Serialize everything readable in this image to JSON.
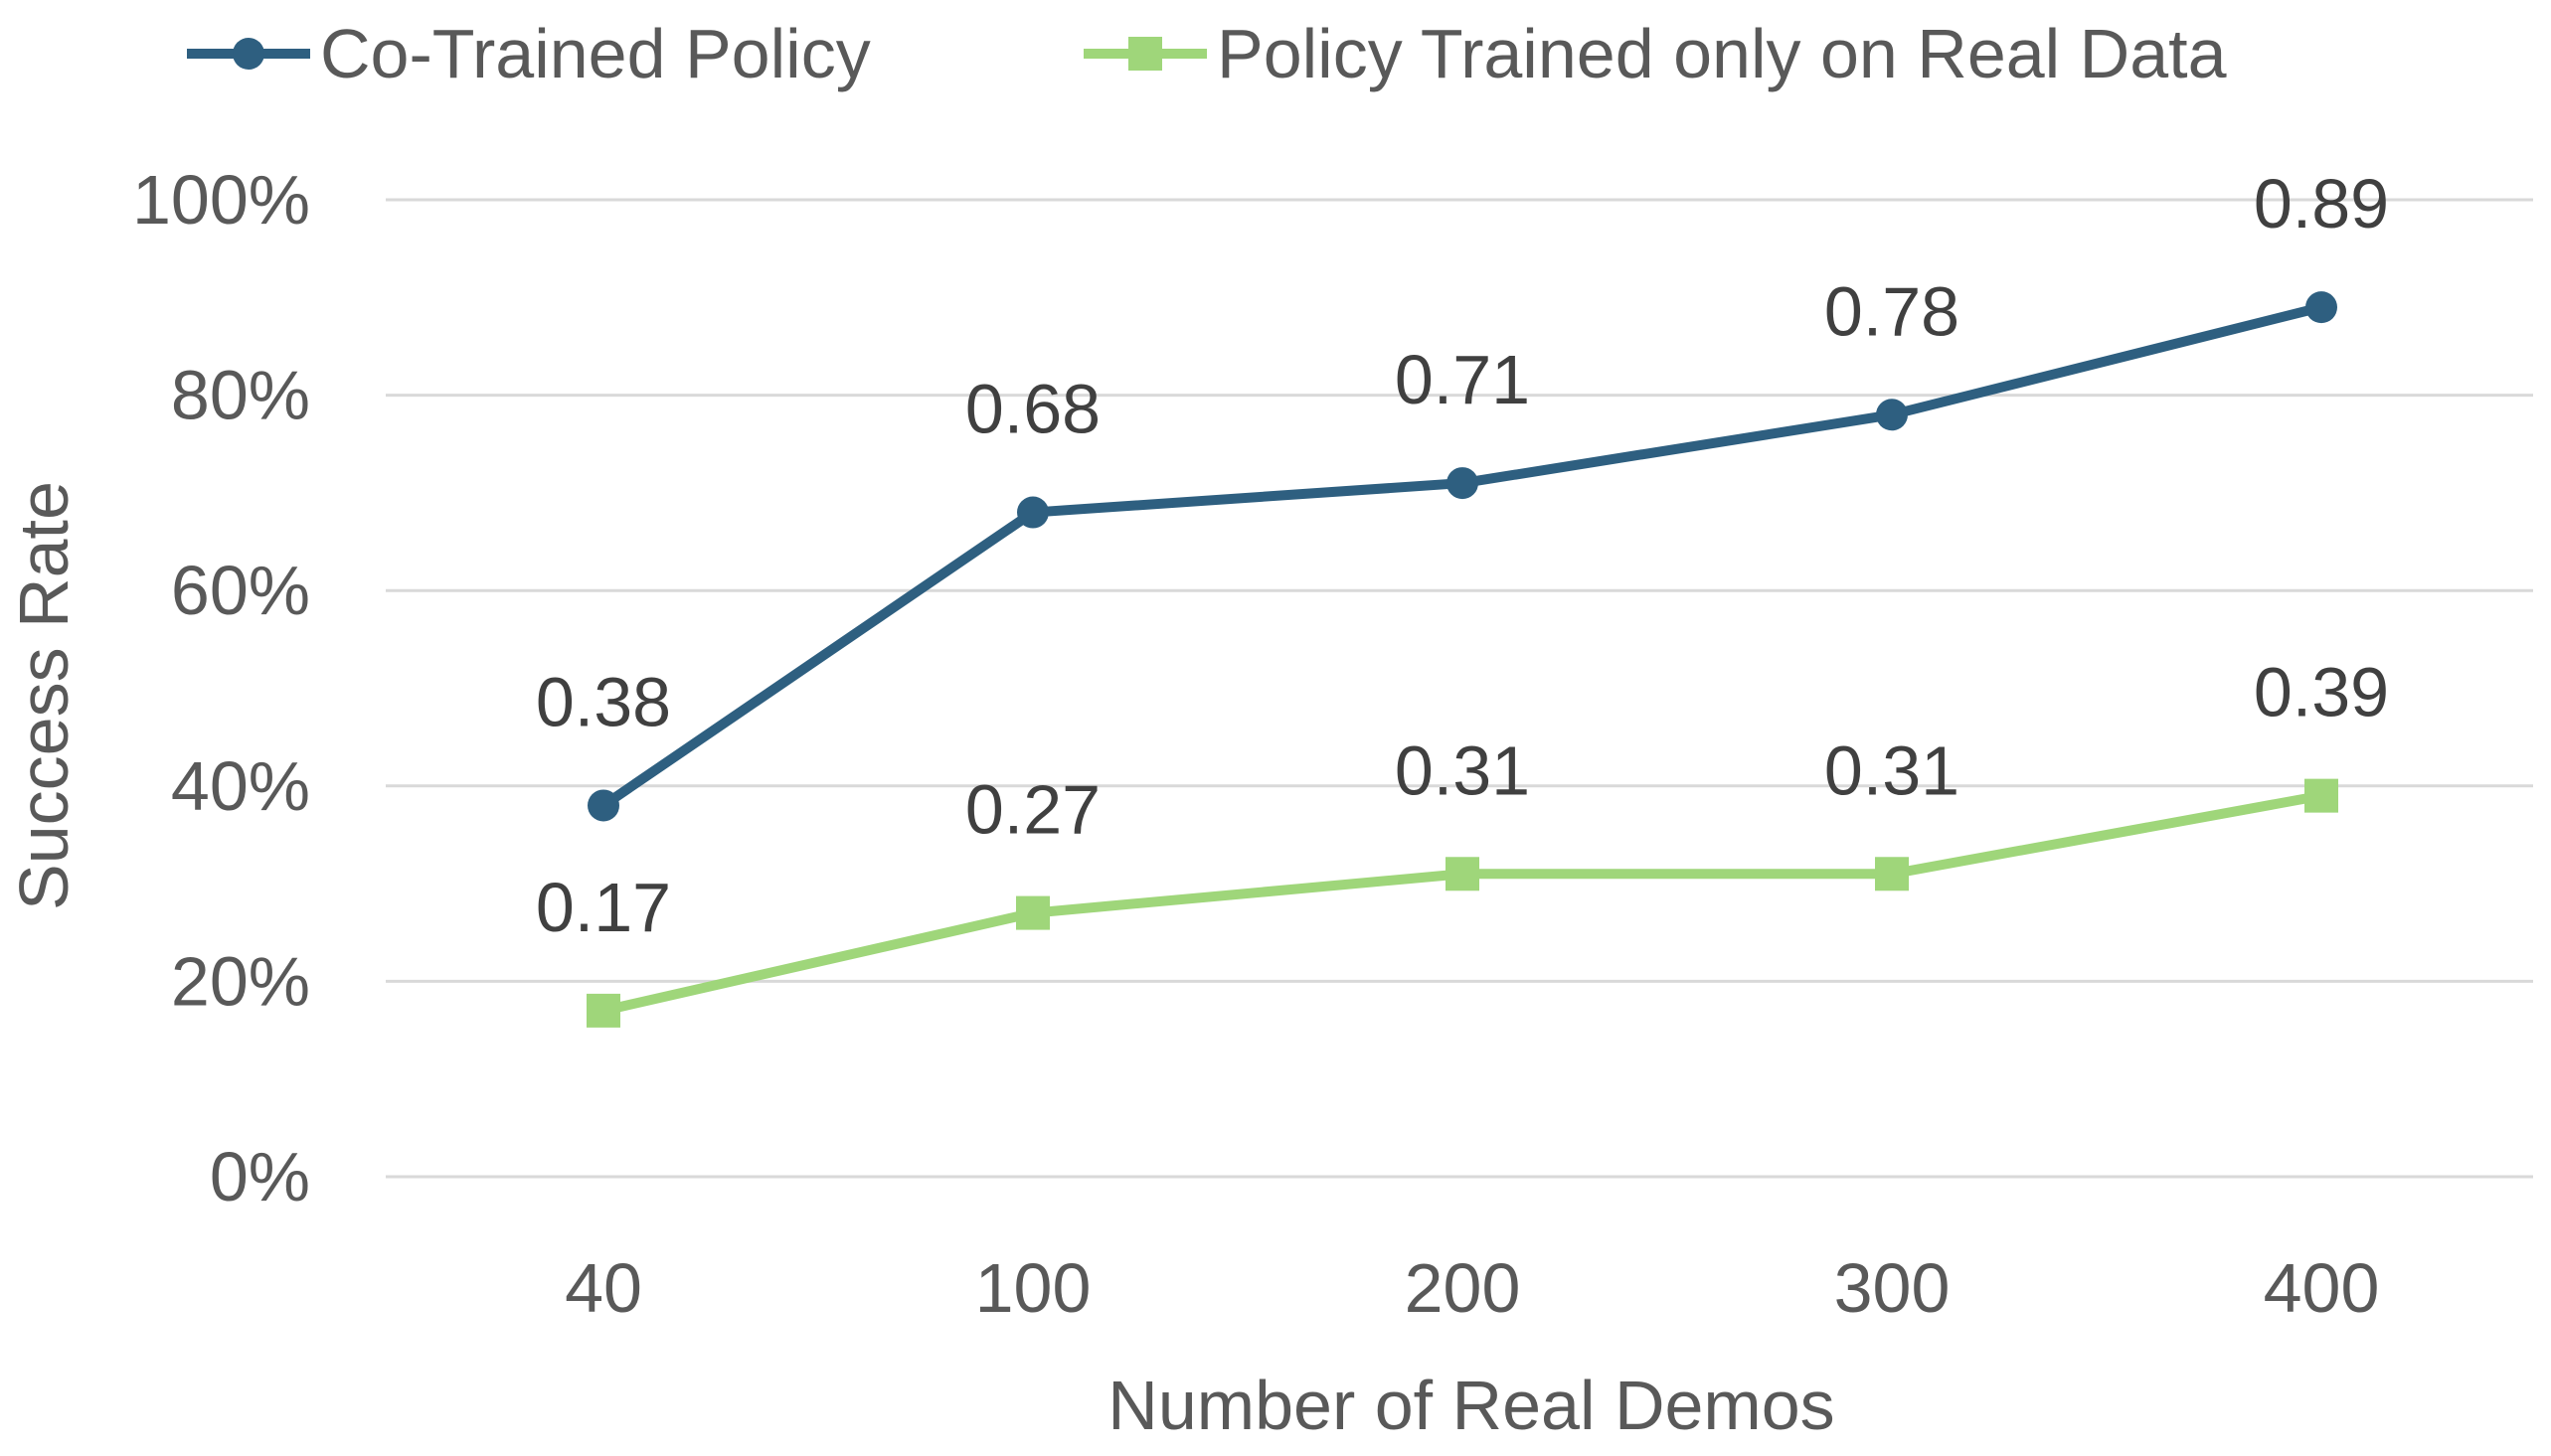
{
  "chart_data": {
    "type": "line",
    "title": "",
    "xlabel": "Number of Real Demos",
    "ylabel": "Success Rate",
    "categories": [
      "40",
      "100",
      "200",
      "300",
      "400"
    ],
    "yticks": [
      "0%",
      "20%",
      "40%",
      "60%",
      "80%",
      "100%"
    ],
    "ylim": [
      0,
      1
    ],
    "grid": true,
    "legend_position": "top",
    "series": [
      {
        "name": "Co-Trained Policy",
        "values": [
          0.38,
          0.68,
          0.71,
          0.78,
          0.89
        ],
        "labels": [
          "0.38",
          "0.68",
          "0.71",
          "0.78",
          "0.89"
        ],
        "color": "#2e5f80",
        "marker": "circle"
      },
      {
        "name": "Policy Trained only on Real Data",
        "values": [
          0.17,
          0.27,
          0.31,
          0.31,
          0.39
        ],
        "labels": [
          "0.17",
          "0.27",
          "0.31",
          "0.31",
          "0.39"
        ],
        "color": "#9fd67a",
        "marker": "square"
      }
    ]
  },
  "colors": {
    "grid": "#d9d9d9",
    "text": "#404040",
    "axis_text": "#595959"
  }
}
